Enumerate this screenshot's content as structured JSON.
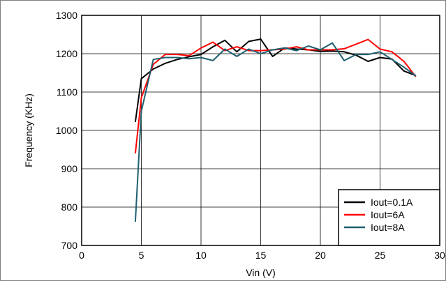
{
  "chart_data": {
    "type": "line",
    "title": "",
    "xlabel": "Vin (V)",
    "ylabel": "Frequency (KHz)",
    "xlim": [
      0,
      30
    ],
    "ylim": [
      700,
      1300
    ],
    "xticks": [
      0,
      5,
      10,
      15,
      20,
      25,
      30
    ],
    "yticks": [
      700,
      800,
      900,
      1000,
      1100,
      1200,
      1300
    ],
    "grid": true,
    "legend_position": "bottom-right",
    "series": [
      {
        "name": "Iout=0.1A",
        "color": "#000000",
        "x": [
          4.5,
          5,
          6,
          7,
          8,
          9,
          10,
          11,
          12,
          13,
          14,
          15,
          16,
          17,
          18,
          19,
          20,
          21,
          22,
          23,
          24,
          25,
          26,
          27,
          28
        ],
        "y": [
          1022,
          1135,
          1160,
          1175,
          1185,
          1192,
          1198,
          1218,
          1235,
          1205,
          1232,
          1238,
          1193,
          1215,
          1212,
          1210,
          1206,
          1207,
          1205,
          1196,
          1180,
          1190,
          1186,
          1155,
          1143
        ]
      },
      {
        "name": "Iout=6A",
        "color": "#ff0000",
        "x": [
          4.5,
          5,
          6,
          7,
          8,
          9,
          10,
          11,
          12,
          13,
          14,
          15,
          16,
          17,
          18,
          19,
          20,
          21,
          22,
          23,
          24,
          25,
          26,
          27,
          28
        ],
        "y": [
          940,
          1085,
          1172,
          1198,
          1198,
          1195,
          1215,
          1230,
          1208,
          1218,
          1208,
          1208,
          1210,
          1212,
          1218,
          1210,
          1210,
          1210,
          1213,
          1225,
          1237,
          1212,
          1205,
          1180,
          1140
        ]
      },
      {
        "name": "Iout=8A",
        "color": "#1f5f6f",
        "x": [
          4.5,
          5,
          6,
          7,
          8,
          9,
          10,
          11,
          12,
          13,
          14,
          15,
          16,
          17,
          18,
          19,
          20,
          21,
          22,
          23,
          24,
          25,
          26,
          27,
          28
        ],
        "y": [
          762,
          1050,
          1185,
          1190,
          1190,
          1187,
          1190,
          1182,
          1212,
          1193,
          1212,
          1200,
          1210,
          1215,
          1208,
          1220,
          1210,
          1228,
          1182,
          1198,
          1198,
          1205,
          1185,
          1165,
          1142
        ]
      }
    ]
  }
}
